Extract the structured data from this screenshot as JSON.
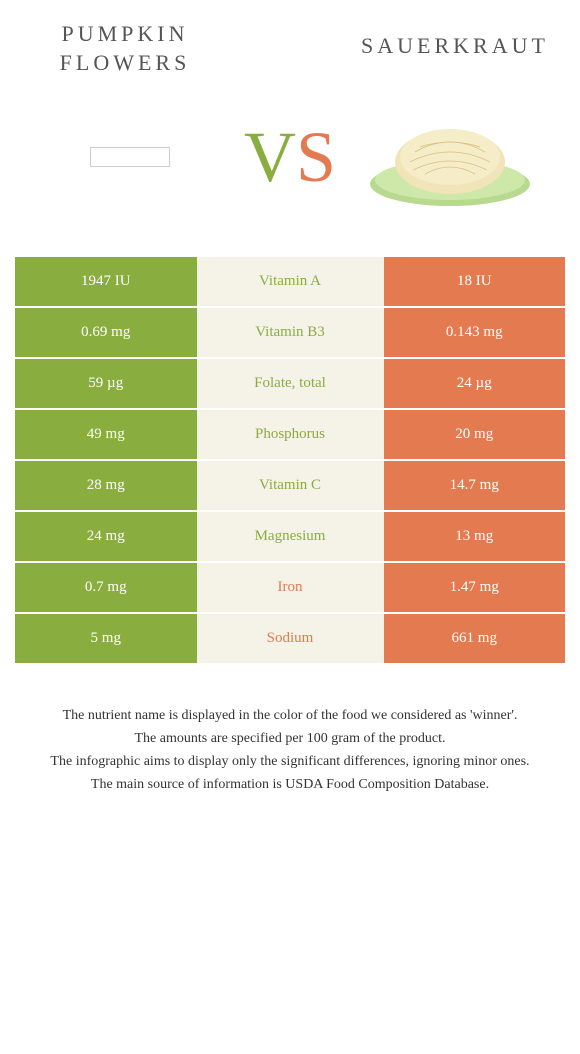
{
  "foods": {
    "left": {
      "name": "Pumpkin Flowers",
      "color": "#8aad3f"
    },
    "right": {
      "name": "Sauerkraut",
      "color": "#e47a4f"
    }
  },
  "vs_label": {
    "v": "V",
    "s": "S"
  },
  "nutrients": [
    {
      "name": "Vitamin A",
      "left": "1947 IU",
      "right": "18 IU",
      "winner": "left"
    },
    {
      "name": "Vitamin B3",
      "left": "0.69 mg",
      "right": "0.143 mg",
      "winner": "left"
    },
    {
      "name": "Folate, total",
      "left": "59 µg",
      "right": "24 µg",
      "winner": "left"
    },
    {
      "name": "Phosphorus",
      "left": "49 mg",
      "right": "20 mg",
      "winner": "left"
    },
    {
      "name": "Vitamin C",
      "left": "28 mg",
      "right": "14.7 mg",
      "winner": "left"
    },
    {
      "name": "Magnesium",
      "left": "24 mg",
      "right": "13 mg",
      "winner": "left"
    },
    {
      "name": "Iron",
      "left": "0.7 mg",
      "right": "1.47 mg",
      "winner": "right"
    },
    {
      "name": "Sodium",
      "left": "5 mg",
      "right": "661 mg",
      "winner": "right"
    }
  ],
  "footer": [
    "The nutrient name is displayed in the color of the food we considered as 'winner'.",
    "The amounts are specified per 100 gram of the product.",
    "The infographic aims to display only the significant differences, ignoring minor ones.",
    "The main source of information is USDA Food Composition Database."
  ]
}
